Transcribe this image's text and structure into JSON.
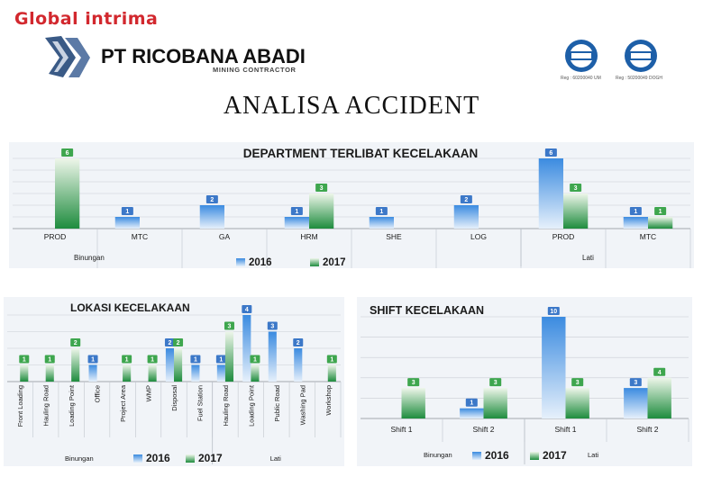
{
  "header": {
    "brand": "Global intrima",
    "company_name": "PT RICOBANA ABADI",
    "company_subtitle": "MINING CONTRACTOR",
    "cert_reg_1": "Reg : 60200040 UM",
    "cert_reg_2": "Reg : 50200049 DOGH"
  },
  "main_title": "ANALISA  ACCIDENT",
  "colors": {
    "s2016": "#3b8be0",
    "s2017": "#1e8c3e",
    "label_bg": "#3ea64e"
  },
  "chart_data": [
    {
      "type": "bar",
      "title": "DEPARTMENT TERLIBAT KECELAKAAN",
      "categories": [
        "PROD",
        "MTC",
        "GA",
        "HRM",
        "SHE",
        "LOG",
        "PROD",
        "MTC"
      ],
      "groups": [
        {
          "label": "Binungan",
          "categories": [
            0,
            1,
            2,
            3,
            4,
            5
          ]
        },
        {
          "label": "Lati",
          "categories": [
            6,
            7
          ]
        }
      ],
      "series": [
        {
          "name": "2016",
          "values": [
            null,
            1,
            2,
            1,
            1,
            2,
            6,
            1
          ]
        },
        {
          "name": "2017",
          "values": [
            6,
            null,
            null,
            3,
            null,
            null,
            3,
            1
          ]
        }
      ],
      "ylim": [
        0,
        6
      ],
      "legend": "bottom",
      "grid": true
    },
    {
      "type": "bar",
      "title": "LOKASI KECELAKAAN",
      "categories": [
        "Front Loading",
        "Hauling Road",
        "Loading Point",
        "Office",
        "Project Area",
        "WMP",
        "Disposal",
        "Fuel Station",
        "Hauling Road",
        "Loading Point",
        "Public Road",
        "Washing Pad",
        "Workshop"
      ],
      "groups": [
        {
          "label": "Binungan",
          "categories": [
            0,
            1,
            2,
            3,
            4,
            5,
            6,
            7
          ]
        },
        {
          "label": "Lati",
          "categories": [
            8,
            9,
            10,
            11,
            12
          ]
        }
      ],
      "series": [
        {
          "name": "2016",
          "values": [
            null,
            null,
            null,
            1,
            null,
            null,
            2,
            1,
            1,
            4,
            3,
            2,
            null
          ]
        },
        {
          "name": "2017",
          "values": [
            1,
            1,
            2,
            null,
            1,
            1,
            2,
            null,
            3,
            1,
            null,
            null,
            1
          ]
        }
      ],
      "ylim": [
        0,
        4
      ],
      "legend": "bottom",
      "grid": true
    },
    {
      "type": "bar",
      "title": "SHIFT KECELAKAAN",
      "categories": [
        "Shift 1",
        "Shift 2",
        "Shift 1",
        "Shift 2"
      ],
      "groups": [
        {
          "label": "Binungan",
          "categories": [
            0,
            1
          ]
        },
        {
          "label": "Lati",
          "categories": [
            2,
            3
          ]
        }
      ],
      "series": [
        {
          "name": "2016",
          "values": [
            null,
            1,
            10,
            3
          ]
        },
        {
          "name": "2017",
          "values": [
            3,
            3,
            3,
            4
          ]
        }
      ],
      "ylim": [
        0,
        10
      ],
      "legend": "bottom",
      "grid": true
    }
  ]
}
